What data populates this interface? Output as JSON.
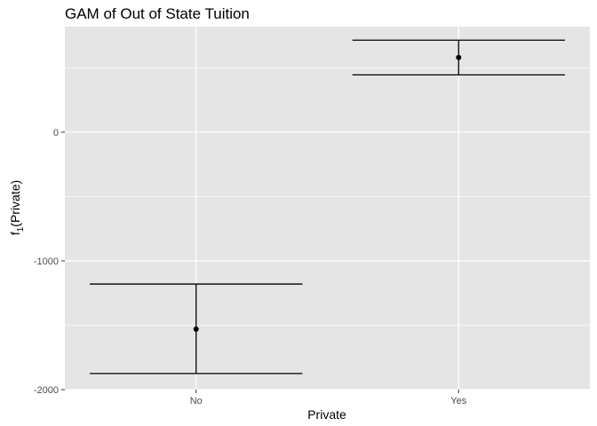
{
  "chart_data": {
    "type": "errorbar",
    "title": "GAM of Out of State Tuition",
    "xlabel": "Private",
    "ylabel": {
      "main": "f",
      "sub": "1",
      "rest": "(Private)"
    },
    "categories": [
      "No",
      "Yes"
    ],
    "points": [
      {
        "x": "No",
        "y": -1530,
        "lower": -1875,
        "upper": -1180
      },
      {
        "x": "Yes",
        "y": 580,
        "lower": 445,
        "upper": 715
      }
    ],
    "yticks": [
      -2000,
      -1000,
      0
    ],
    "yticklabels": [
      "-2000",
      "-1000",
      "0"
    ],
    "ylim": [
      -2000,
      820
    ],
    "grid": true,
    "legend": "none",
    "colors": {
      "panel": "#e5e5e5",
      "grid": "#ffffff",
      "marks": "#000000",
      "tick_label": "#4d4d4d"
    }
  }
}
